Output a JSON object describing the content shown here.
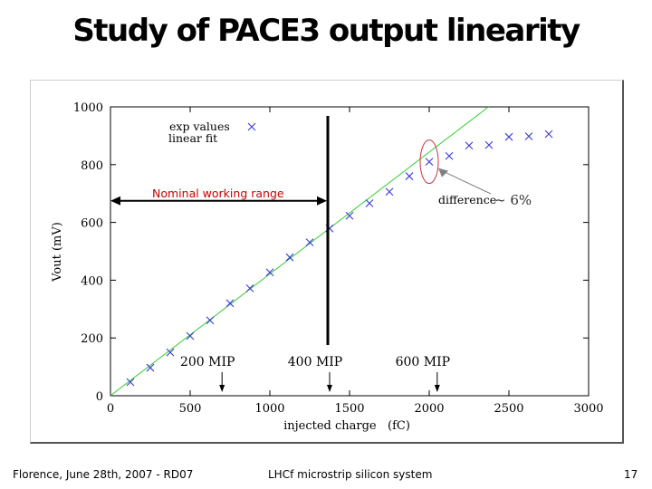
{
  "slide": {
    "title": "Study of PACE3 output linearity",
    "footer_left": "Florence, June 28th, 2007 - RD07",
    "footer_center": "LHCf microstrip silicon system",
    "page_number": "17"
  },
  "chart_data": {
    "type": "scatter",
    "title": "",
    "xlabel": "injected charge   (fC)",
    "ylabel": "Vout (mV)",
    "xlim": [
      0,
      3000
    ],
    "ylim": [
      0,
      1000
    ],
    "x_ticks": [
      "0",
      "500",
      "1000",
      "1500",
      "2000",
      "2500",
      "3000"
    ],
    "y_ticks": [
      "0",
      "200",
      "400",
      "600",
      "800",
      "1000"
    ],
    "grid": false,
    "legend": {
      "placement": "top-left",
      "entries": [
        "exp values",
        "linear fit"
      ]
    },
    "series": [
      {
        "name": "exp values",
        "marker": "x",
        "color": "#3b3bd6",
        "x": [
          125,
          250,
          375,
          500,
          625,
          750,
          875,
          1000,
          1125,
          1250,
          1375,
          1500,
          1625,
          1750,
          1875,
          2000,
          2125,
          2250,
          2375,
          2500,
          2625,
          2750
        ],
        "y": [
          47,
          97,
          150,
          207,
          261,
          320,
          372,
          427,
          479,
          531,
          579,
          623,
          666,
          706,
          760,
          810,
          830,
          866,
          868,
          896,
          898,
          906
        ]
      },
      {
        "name": "linear fit",
        "type": "line",
        "color": "#33cc33",
        "slope": 0.4217,
        "intercept": 0
      }
    ],
    "annotations": {
      "nominal_range_label": "Nominal working range",
      "nominal_range_x": [
        0,
        1375
      ],
      "nominal_range_y": 700,
      "threshold_x": 1375,
      "difference_label": "difference",
      "difference_value": "~ 6%",
      "highlight_x": 2000,
      "highlight_y": 810,
      "mip_labels": [
        {
          "text": "200 MIP",
          "x": 700
        },
        {
          "text": "400 MIP",
          "x": 1375
        },
        {
          "text": "600 MIP",
          "x": 2050
        }
      ]
    },
    "colors": {
      "nominal_label": "#cc0000",
      "highlight": "#cc3344",
      "pointer": "#808080"
    }
  }
}
